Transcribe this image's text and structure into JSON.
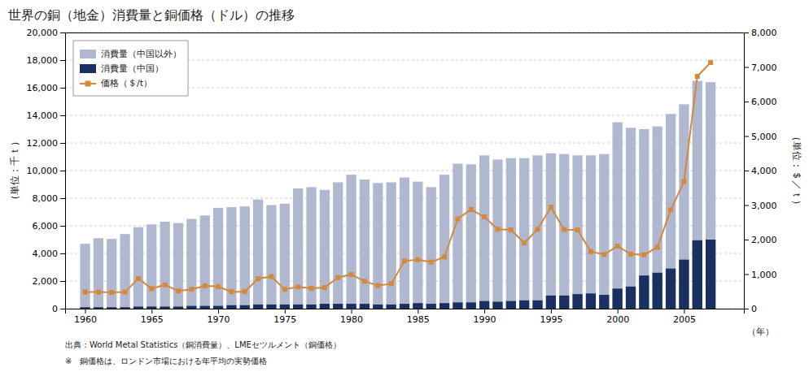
{
  "chart_data": {
    "type": "bar",
    "title": "世界の銅（地金）消費量と銅価格（ドル）の推移",
    "x": [
      1960,
      1961,
      1962,
      1963,
      1964,
      1965,
      1966,
      1967,
      1968,
      1969,
      1970,
      1971,
      1972,
      1973,
      1974,
      1975,
      1976,
      1977,
      1978,
      1979,
      1980,
      1981,
      1982,
      1983,
      1984,
      1985,
      1986,
      1987,
      1988,
      1989,
      1990,
      1991,
      1992,
      1993,
      1994,
      1995,
      1996,
      1997,
      1998,
      1999,
      2000,
      2001,
      2002,
      2003,
      2004,
      2005,
      2006,
      2007
    ],
    "xlim": [
      1958.5,
      2009.5
    ],
    "xticks": [
      1960,
      1965,
      1970,
      1975,
      1980,
      1985,
      1990,
      1995,
      2000,
      2005
    ],
    "ylim": [
      0,
      20000
    ],
    "yticks": [
      0,
      {
        "value": 2000,
        "label": "2,000"
      },
      {
        "value": 4000,
        "label": "4,000"
      },
      {
        "value": 6000,
        "label": "6,000"
      },
      {
        "value": 8000,
        "label": "8,000"
      },
      {
        "value": 10000,
        "label": "10,000"
      },
      {
        "value": 12000,
        "label": "12,000"
      },
      {
        "value": 14000,
        "label": "14,000"
      },
      {
        "value": 16000,
        "label": "16,000"
      },
      {
        "value": 18000,
        "label": "18,000"
      },
      {
        "value": 20000,
        "label": "20,000"
      }
    ],
    "y2lim": [
      0,
      8000
    ],
    "y2ticks": [
      0,
      {
        "value": 1000,
        "label": "1,000"
      },
      {
        "value": 2000,
        "label": "2,000"
      },
      {
        "value": 3000,
        "label": "3,000"
      },
      {
        "value": 4000,
        "label": "4,000"
      },
      {
        "value": 5000,
        "label": "5,000"
      },
      {
        "value": 6000,
        "label": "6,000"
      },
      {
        "value": 7000,
        "label": "7,000"
      },
      {
        "value": 8000,
        "label": "8,000"
      }
    ],
    "ylabel": "（単位：千ｔ）",
    "y2label": "（単位：＄／ｔ）",
    "stacked": false,
    "grid": true,
    "legend": "upper left",
    "series": [
      {
        "name": "消費量（中国以外）",
        "type": "bar",
        "color": "#b0b8d0",
        "values": [
          4700,
          5100,
          5050,
          5400,
          5900,
          6100,
          6300,
          6200,
          6500,
          6750,
          7300,
          7350,
          7400,
          7900,
          7500,
          7600,
          8700,
          8800,
          8600,
          9150,
          9700,
          9350,
          9100,
          9150,
          9500,
          9200,
          8800,
          9700,
          10500,
          10450,
          11100,
          10800,
          10900,
          10900,
          11100,
          11250,
          11200,
          11100,
          11100,
          11200,
          13500,
          13100,
          13000,
          13200,
          14100,
          14800,
          16500,
          16400
        ]
      },
      {
        "name": "消費量（中国）",
        "type": "bar",
        "color": "#1a3060",
        "values": [
          100,
          100,
          100,
          100,
          150,
          150,
          150,
          150,
          200,
          200,
          200,
          250,
          250,
          300,
          300,
          300,
          300,
          300,
          350,
          350,
          350,
          350,
          300,
          300,
          350,
          400,
          350,
          400,
          450,
          450,
          550,
          500,
          550,
          600,
          600,
          950,
          950,
          1050,
          1100,
          1000,
          1450,
          1600,
          2400,
          2600,
          2900,
          3550,
          4950,
          5000
        ]
      },
      {
        "name": "価格（＄/t）",
        "type": "line",
        "axis": "y2",
        "color": "#d4883a",
        "marker": "square",
        "values": [
          480,
          480,
          470,
          480,
          870,
          580,
          690,
          510,
          560,
          660,
          640,
          490,
          490,
          870,
          930,
          560,
          630,
          590,
          610,
          900,
          990,
          790,
          670,
          720,
          1380,
          1420,
          1350,
          1500,
          2600,
          2870,
          2660,
          2300,
          2280,
          1900,
          2300,
          2935,
          2290,
          2280,
          1650,
          1570,
          1810,
          1580,
          1560,
          1780,
          2860,
          3680,
          6730,
          7130
        ]
      }
    ],
    "annotations": [
      "（年）",
      "出典：World Metal Statistics（銅消費量）、LMEセツルメント（銅価格）",
      "※　銅価格は、ロンドン市場における年平均の実勢価格"
    ]
  }
}
